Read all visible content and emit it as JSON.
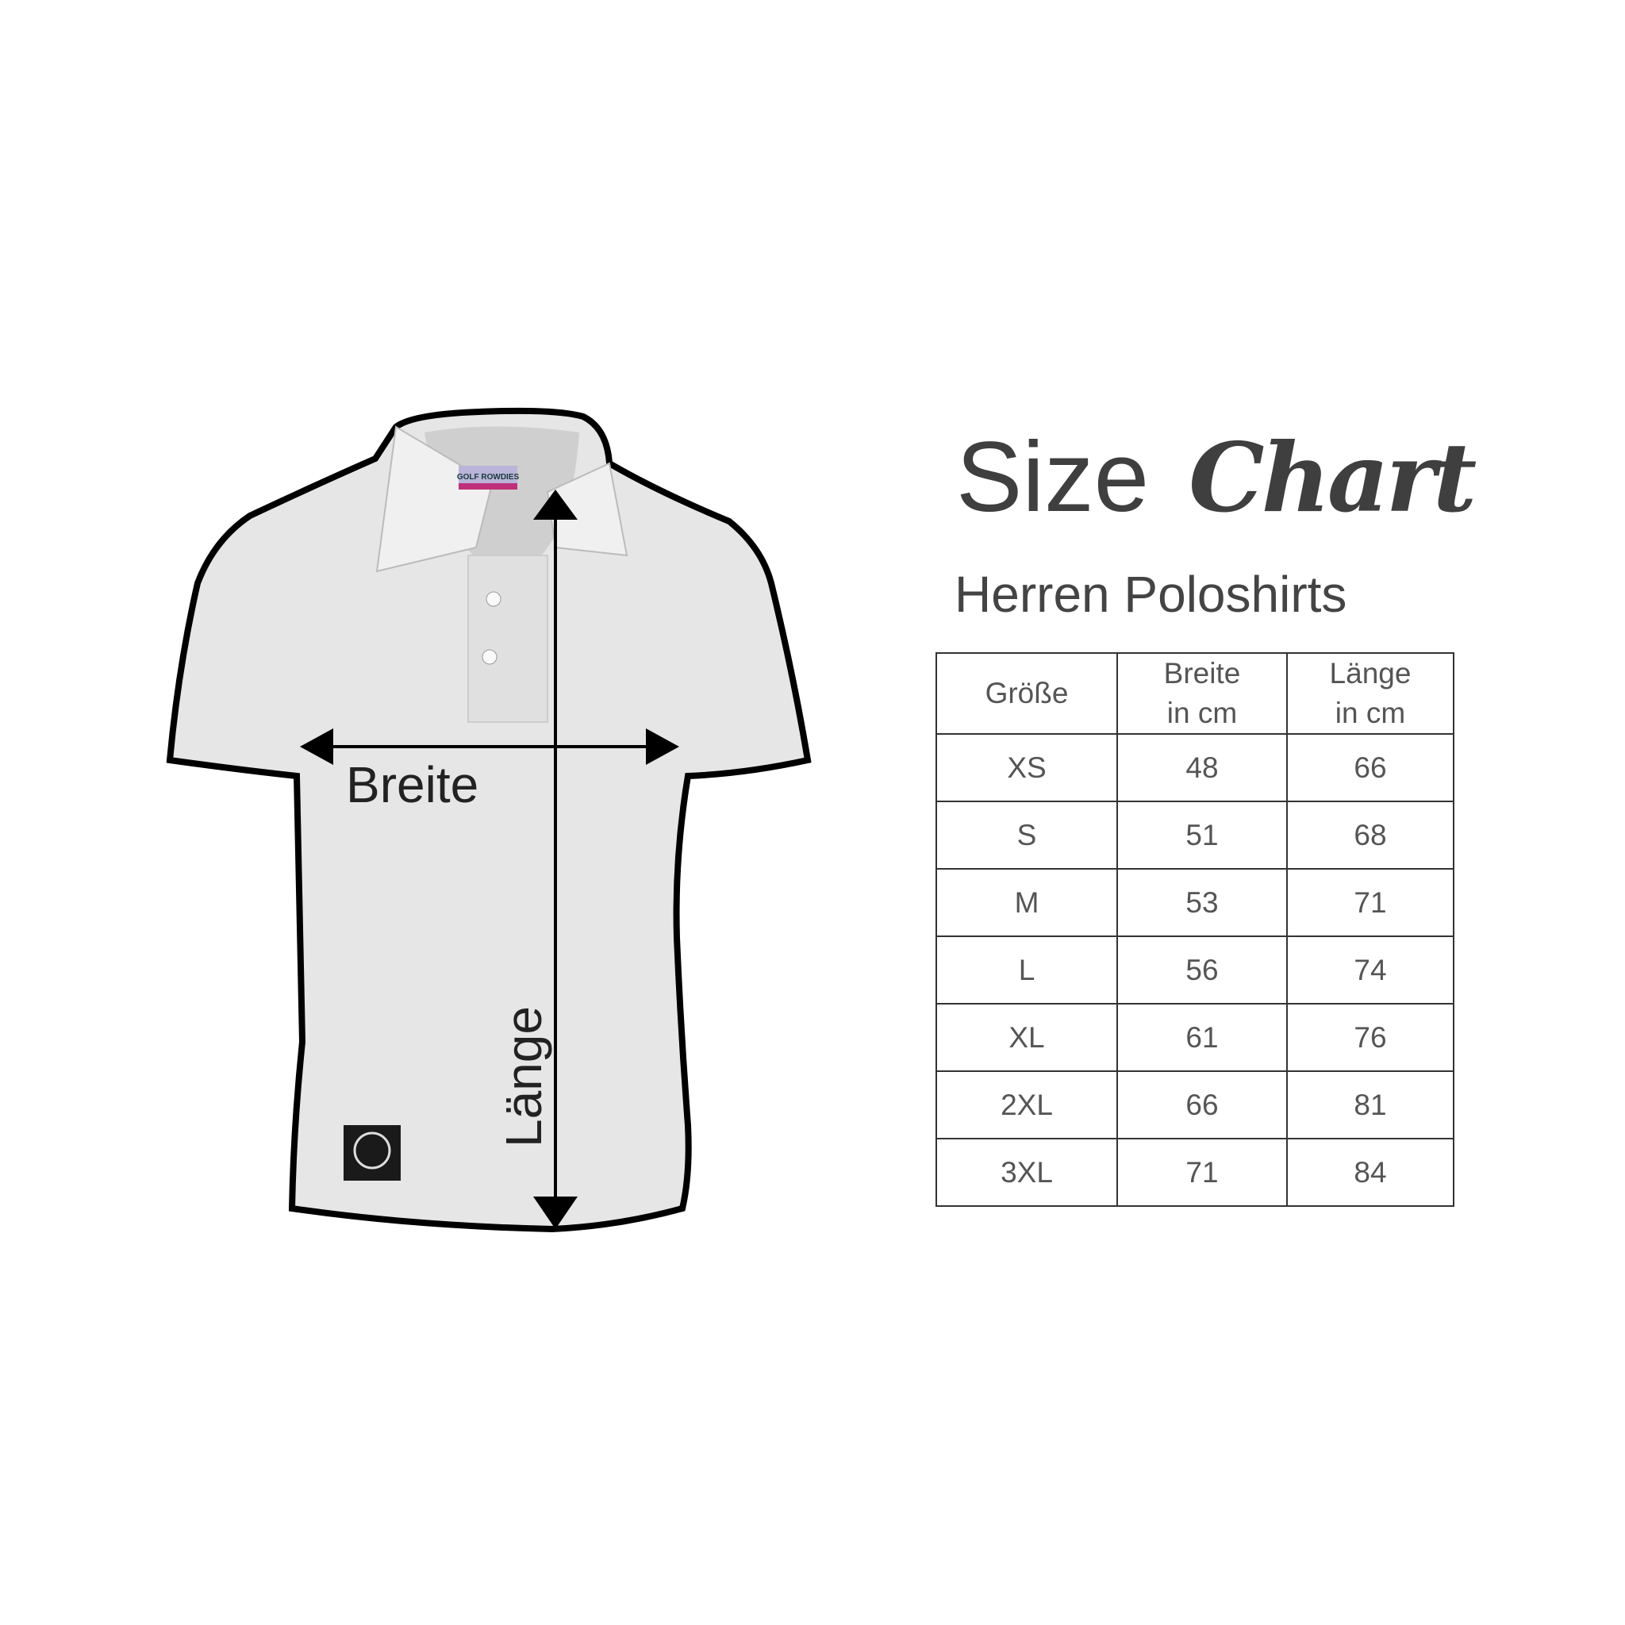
{
  "title": {
    "main": "Size",
    "script": "Chart"
  },
  "subtitle": "Herren Poloshirts",
  "diagram": {
    "width_label": "Breite",
    "length_label": "Länge",
    "brand_label": "GOLF ROWDIES"
  },
  "table": {
    "headers": [
      "Größe",
      "Breite in cm",
      "Länge in cm"
    ],
    "header_lines": [
      [
        "Größe"
      ],
      [
        "Breite",
        "in cm"
      ],
      [
        "Länge",
        "in cm"
      ]
    ],
    "rows": [
      [
        "XS",
        "48",
        "66"
      ],
      [
        "S",
        "51",
        "68"
      ],
      [
        "M",
        "53",
        "71"
      ],
      [
        "L",
        "56",
        "74"
      ],
      [
        "XL",
        "61",
        "76"
      ],
      [
        "2XL",
        "66",
        "81"
      ],
      [
        "3XL",
        "71",
        "84"
      ]
    ]
  }
}
